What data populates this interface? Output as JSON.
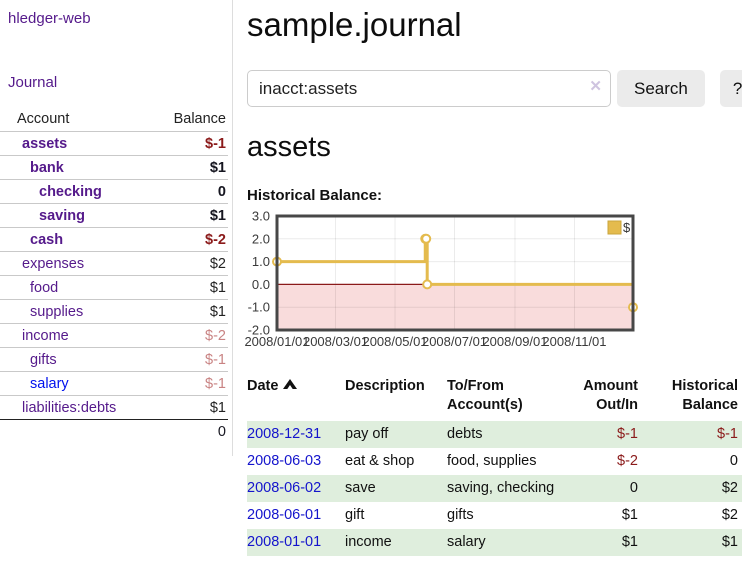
{
  "app": {
    "brand": "hledger-web",
    "nav_journal": "Journal"
  },
  "sidebar": {
    "header": {
      "account": "Account",
      "balance": "Balance"
    },
    "accounts": [
      {
        "name": "assets",
        "depth": 0,
        "bold": true,
        "link_color": "purple",
        "balance": "$-1",
        "balance_style": "neg-strong"
      },
      {
        "name": "bank",
        "depth": 1,
        "bold": true,
        "link_color": "purple",
        "balance": "$1",
        "balance_style": "pos-strong"
      },
      {
        "name": "checking",
        "depth": 2,
        "bold": true,
        "link_color": "purple",
        "balance": "0",
        "balance_style": "pos-strong"
      },
      {
        "name": "saving",
        "depth": 2,
        "bold": true,
        "link_color": "purple",
        "balance": "$1",
        "balance_style": "pos-strong"
      },
      {
        "name": "cash",
        "depth": 1,
        "bold": true,
        "link_color": "purple",
        "balance": "$-2",
        "balance_style": "neg-strong"
      },
      {
        "name": "expenses",
        "depth": 0,
        "bold": false,
        "link_color": "purple",
        "balance": "$2",
        "balance_style": "pos"
      },
      {
        "name": "food",
        "depth": 1,
        "bold": false,
        "link_color": "purple",
        "balance": "$1",
        "balance_style": "pos"
      },
      {
        "name": "supplies",
        "depth": 1,
        "bold": false,
        "link_color": "purple",
        "balance": "$1",
        "balance_style": "pos"
      },
      {
        "name": "income",
        "depth": 0,
        "bold": false,
        "link_color": "purple",
        "balance": "$-2",
        "balance_style": "neg"
      },
      {
        "name": "gifts",
        "depth": 1,
        "bold": false,
        "link_color": "purple",
        "balance": "$-1",
        "balance_style": "neg"
      },
      {
        "name": "salary",
        "depth": 1,
        "bold": false,
        "link_color": "blue",
        "balance": "$-1",
        "balance_style": "neg"
      },
      {
        "name": "liabilities:debts",
        "depth": 0,
        "bold": false,
        "link_color": "purple",
        "balance": "$1",
        "balance_style": "pos"
      }
    ],
    "total": "0"
  },
  "header": {
    "title": "sample.journal"
  },
  "search": {
    "value": "inacct:assets",
    "clear_glyph": "✕",
    "button_label": "Search",
    "help_label": "?"
  },
  "account_page": {
    "heading": "assets",
    "chart_label": "Historical Balance:"
  },
  "chart_data": {
    "type": "line",
    "title": "Historical Balance",
    "step": "after",
    "xlim": [
      "2008-01-01",
      "2008-12-31"
    ],
    "ylim": [
      -2,
      3
    ],
    "x_ticks": [
      "2008/01/01",
      "2008/03/01",
      "2008/05/01",
      "2008/07/01",
      "2008/09/01",
      "2008/11/01"
    ],
    "y_ticks": [
      "3.0",
      "2.0",
      "1.0",
      "0.0",
      "-1.0",
      "-2.0"
    ],
    "series": [
      {
        "name": "$",
        "points": [
          [
            "2008-01-01",
            1
          ],
          [
            "2008-06-01",
            2
          ],
          [
            "2008-06-02",
            2
          ],
          [
            "2008-06-03",
            0
          ],
          [
            "2008-12-31",
            -1
          ]
        ]
      }
    ],
    "legend": {
      "label": "$",
      "position": "top-right"
    },
    "colors": {
      "line": "#e4bb4e",
      "marker_fill": "#ffffff",
      "negative_region": "#f9dcdc",
      "zero_line": "#8b1a1a",
      "border": "#474747",
      "grid": "rgba(0,0,0,0.08)",
      "tick_text": "#3a3a3a"
    }
  },
  "register": {
    "columns": {
      "date": "Date",
      "description": "Description",
      "accounts": "To/From Account(s)",
      "amount": "Amount Out/In",
      "balance": "Historical Balance"
    },
    "sort": "ascending",
    "rows": [
      {
        "date": "2008-12-31",
        "description": "pay off",
        "accounts": "debts",
        "amount": "$-1",
        "amount_neg": true,
        "balance": "$-1",
        "balance_neg": true
      },
      {
        "date": "2008-06-03",
        "description": "eat & shop",
        "accounts": "food, supplies",
        "amount": "$-2",
        "amount_neg": true,
        "balance": "0",
        "balance_neg": false
      },
      {
        "date": "2008-06-02",
        "description": "save",
        "accounts": "saving, checking",
        "amount": "0",
        "amount_neg": false,
        "balance": "$2",
        "balance_neg": false
      },
      {
        "date": "2008-06-01",
        "description": "gift",
        "accounts": "gifts",
        "amount": "$1",
        "amount_neg": false,
        "balance": "$2",
        "balance_neg": false
      },
      {
        "date": "2008-01-01",
        "description": "income",
        "accounts": "salary",
        "amount": "$1",
        "amount_neg": false,
        "balance": "$1",
        "balance_neg": false
      }
    ]
  }
}
